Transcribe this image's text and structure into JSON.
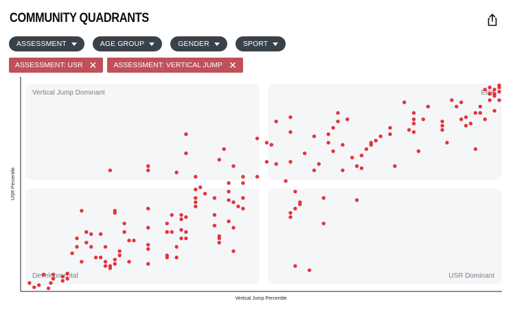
{
  "header": {
    "title": "COMMUNITY QUADRANTS"
  },
  "filters": [
    {
      "label": "ASSESSMENT"
    },
    {
      "label": "AGE GROUP"
    },
    {
      "label": "GENDER"
    },
    {
      "label": "SPORT"
    }
  ],
  "chips": [
    {
      "label": "ASSESSMENT: USR"
    },
    {
      "label": "ASSESSMENT: VERTICAL JUMP"
    }
  ],
  "chart_data": {
    "type": "scatter",
    "title": "",
    "xlabel": "Vertical Jump Percentile",
    "ylabel": "USR Percentile",
    "xlim": [
      0,
      100
    ],
    "ylim": [
      0,
      100
    ],
    "grid": false,
    "point_color": "#e5333d",
    "quadrant_fill": "#f5f6f8",
    "quadrants": {
      "top_left": "Vertical Jump Dominant",
      "top_right": "Elite",
      "bottom_left": "Developmental",
      "bottom_right": "USR Dominant"
    },
    "points": [
      [
        1,
        3
      ],
      [
        2,
        1
      ],
      [
        3,
        2
      ],
      [
        4,
        7
      ],
      [
        5,
        0.5
      ],
      [
        5.5,
        3
      ],
      [
        6,
        7
      ],
      [
        6,
        5
      ],
      [
        8,
        4
      ],
      [
        8,
        6
      ],
      [
        9,
        5
      ],
      [
        9,
        7.5
      ],
      [
        10,
        17
      ],
      [
        11,
        20
      ],
      [
        11,
        24
      ],
      [
        12,
        13
      ],
      [
        12,
        37
      ],
      [
        13,
        27
      ],
      [
        13,
        22
      ],
      [
        14,
        20
      ],
      [
        14,
        26
      ],
      [
        15,
        15
      ],
      [
        16,
        26
      ],
      [
        16,
        15
      ],
      [
        17,
        20
      ],
      [
        17,
        13
      ],
      [
        17,
        11
      ],
      [
        18,
        10
      ],
      [
        18,
        11
      ],
      [
        18,
        56
      ],
      [
        19,
        12
      ],
      [
        19,
        14
      ],
      [
        19,
        37
      ],
      [
        19,
        36
      ],
      [
        20,
        16
      ],
      [
        20,
        18
      ],
      [
        21,
        27
      ],
      [
        21,
        31
      ],
      [
        22,
        23
      ],
      [
        22,
        13
      ],
      [
        23,
        23
      ],
      [
        26,
        21
      ],
      [
        26,
        38
      ],
      [
        26,
        12
      ],
      [
        26,
        29
      ],
      [
        26,
        19
      ],
      [
        26,
        58
      ],
      [
        26,
        56
      ],
      [
        30,
        31
      ],
      [
        30,
        27
      ],
      [
        30,
        27
      ],
      [
        30,
        15
      ],
      [
        30,
        16
      ],
      [
        31,
        27
      ],
      [
        31,
        35
      ],
      [
        32,
        20
      ],
      [
        32,
        15
      ],
      [
        32,
        55
      ],
      [
        33,
        33
      ],
      [
        33,
        24
      ],
      [
        33,
        35
      ],
      [
        33,
        28
      ],
      [
        34,
        34
      ],
      [
        34,
        27
      ],
      [
        34,
        24
      ],
      [
        34,
        64
      ],
      [
        34,
        73
      ],
      [
        36,
        39
      ],
      [
        36,
        41
      ],
      [
        36,
        43
      ],
      [
        36,
        47
      ],
      [
        36,
        53
      ],
      [
        37,
        48
      ],
      [
        38,
        45
      ],
      [
        40,
        35
      ],
      [
        40,
        30
      ],
      [
        40,
        43
      ],
      [
        41,
        25
      ],
      [
        41,
        24
      ],
      [
        41,
        61
      ],
      [
        41,
        22
      ],
      [
        42,
        66
      ],
      [
        43,
        32
      ],
      [
        43,
        42
      ],
      [
        43,
        50
      ],
      [
        43,
        46
      ],
      [
        44,
        29
      ],
      [
        44,
        18
      ],
      [
        44,
        41
      ],
      [
        44,
        58
      ],
      [
        45,
        39
      ],
      [
        46,
        50
      ],
      [
        46,
        43
      ],
      [
        46,
        38
      ],
      [
        46,
        53
      ],
      [
        49,
        71
      ],
      [
        49,
        53
      ],
      [
        51,
        69
      ],
      [
        51,
        60
      ],
      [
        52,
        68
      ],
      [
        53,
        79
      ],
      [
        53,
        59
      ],
      [
        55,
        51
      ],
      [
        56,
        81
      ],
      [
        56,
        74
      ],
      [
        56,
        60
      ],
      [
        56,
        34
      ],
      [
        56,
        36
      ],
      [
        57,
        46
      ],
      [
        57,
        38
      ],
      [
        57,
        11
      ],
      [
        58,
        41
      ],
      [
        58,
        40
      ],
      [
        59,
        64
      ],
      [
        60,
        9
      ],
      [
        61,
        56
      ],
      [
        61,
        72
      ],
      [
        62,
        59
      ],
      [
        63,
        43
      ],
      [
        63,
        31
      ],
      [
        64,
        69
      ],
      [
        64,
        73
      ],
      [
        65,
        76
      ],
      [
        65,
        65
      ],
      [
        66,
        83
      ],
      [
        66,
        79
      ],
      [
        67,
        56
      ],
      [
        67,
        68
      ],
      [
        68,
        80
      ],
      [
        69,
        62
      ],
      [
        70,
        58
      ],
      [
        70,
        42
      ],
      [
        71,
        57
      ],
      [
        71,
        63
      ],
      [
        72,
        66
      ],
      [
        73,
        68
      ],
      [
        73,
        69
      ],
      [
        74,
        70
      ],
      [
        75,
        72
      ],
      [
        77,
        73
      ],
      [
        77,
        76
      ],
      [
        78,
        58
      ],
      [
        80,
        88
      ],
      [
        81,
        75
      ],
      [
        82,
        78
      ],
      [
        82,
        74
      ],
      [
        82,
        83
      ],
      [
        82,
        80
      ],
      [
        83,
        65
      ],
      [
        84,
        80
      ],
      [
        85,
        86
      ],
      [
        85,
        86
      ],
      [
        88,
        79
      ],
      [
        88,
        75
      ],
      [
        88,
        77
      ],
      [
        89,
        69
      ],
      [
        90,
        89
      ],
      [
        91,
        86
      ],
      [
        92,
        88
      ],
      [
        92,
        80
      ],
      [
        93,
        81
      ],
      [
        93,
        77
      ],
      [
        94,
        78
      ],
      [
        95,
        83
      ],
      [
        95,
        66
      ],
      [
        96,
        86
      ],
      [
        96,
        83
      ],
      [
        97,
        80
      ],
      [
        97,
        94
      ],
      [
        98,
        95
      ],
      [
        98,
        92
      ],
      [
        99,
        92
      ],
      [
        99,
        94
      ],
      [
        99,
        91
      ],
      [
        99,
        92
      ],
      [
        99,
        84
      ],
      [
        100,
        96
      ],
      [
        100,
        95
      ],
      [
        100,
        93
      ],
      [
        100,
        89
      ],
      [
        98,
        89
      ]
    ]
  }
}
